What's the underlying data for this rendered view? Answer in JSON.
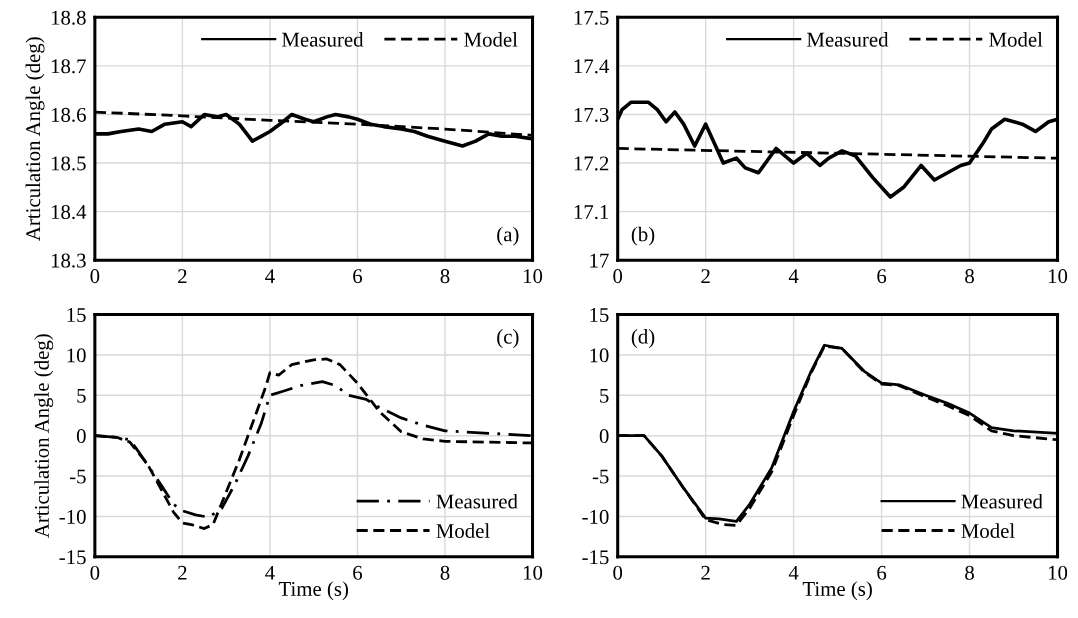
{
  "chart_data": [
    {
      "type": "line",
      "ylabel": "Articulation Angle (deg)",
      "annotations": [
        "(a)"
      ],
      "xlim": [
        0,
        10
      ],
      "xticks": [
        0,
        2,
        4,
        6,
        8,
        10
      ],
      "ylim": [
        18.3,
        18.8
      ],
      "yticks": [
        18.3,
        18.4,
        18.5,
        18.6,
        18.7,
        18.8
      ],
      "grid": true,
      "legend": "top right",
      "series": [
        {
          "name": "Measured",
          "color": "#000000",
          "line_style": "solid",
          "x": [
            0,
            0.3,
            0.6,
            1,
            1.3,
            1.6,
            2,
            2.2,
            2.5,
            2.8,
            3.0,
            3.3,
            3.6,
            3.8,
            4.0,
            4.3,
            4.5,
            4.8,
            5.0,
            5.3,
            5.5,
            5.8,
            6.0,
            6.3,
            6.6,
            7.0,
            7.3,
            7.6,
            8.0,
            8.4,
            8.7,
            9.0,
            9.3,
            9.6,
            10
          ],
          "values": [
            18.56,
            18.56,
            18.565,
            18.57,
            18.565,
            18.58,
            18.585,
            18.575,
            18.6,
            18.595,
            18.6,
            18.58,
            18.545,
            18.555,
            18.565,
            18.585,
            18.6,
            18.59,
            18.585,
            18.595,
            18.6,
            18.595,
            18.59,
            18.58,
            18.575,
            18.57,
            18.565,
            18.555,
            18.545,
            18.535,
            18.545,
            18.56,
            18.555,
            18.555,
            18.55
          ]
        },
        {
          "name": "Model",
          "color": "#000000",
          "line_style": "dashed",
          "x": [
            0,
            2,
            4,
            6,
            8,
            10
          ],
          "values": [
            18.605,
            18.597,
            18.588,
            18.58,
            18.57,
            18.557
          ]
        }
      ]
    },
    {
      "type": "line",
      "annotations": [
        "(b)"
      ],
      "xlim": [
        0,
        10
      ],
      "xticks": [
        0,
        2,
        4,
        6,
        8,
        10
      ],
      "ylim": [
        17,
        17.5
      ],
      "yticks": [
        17,
        17.1,
        17.2,
        17.3,
        17.4,
        17.5
      ],
      "grid": true,
      "legend": "top right",
      "series": [
        {
          "name": "Measured",
          "color": "#000000",
          "line_style": "solid",
          "x": [
            0,
            0.1,
            0.3,
            0.7,
            0.9,
            1.1,
            1.3,
            1.5,
            1.75,
            2.0,
            2.2,
            2.4,
            2.7,
            2.9,
            3.2,
            3.6,
            4.0,
            4.3,
            4.6,
            4.8,
            5.1,
            5.4,
            5.8,
            6.2,
            6.5,
            6.9,
            7.2,
            7.5,
            7.8,
            8.0,
            8.3,
            8.5,
            8.8,
            9.2,
            9.5,
            9.8,
            10
          ],
          "values": [
            17.29,
            17.31,
            17.325,
            17.325,
            17.31,
            17.285,
            17.305,
            17.28,
            17.235,
            17.28,
            17.24,
            17.2,
            17.21,
            17.19,
            17.18,
            17.23,
            17.2,
            17.22,
            17.195,
            17.21,
            17.225,
            17.215,
            17.17,
            17.13,
            17.15,
            17.195,
            17.165,
            17.18,
            17.195,
            17.2,
            17.24,
            17.27,
            17.29,
            17.28,
            17.265,
            17.285,
            17.29
          ]
        },
        {
          "name": "Model",
          "color": "#000000",
          "line_style": "dashed",
          "x": [
            0,
            5,
            10
          ],
          "values": [
            17.23,
            17.22,
            17.21
          ]
        }
      ]
    },
    {
      "type": "line",
      "xlabel": "Time (s)",
      "ylabel": "Articulation Angle (deg)",
      "annotations": [
        "(c)"
      ],
      "xlim": [
        0,
        10
      ],
      "xticks": [
        0,
        2,
        4,
        6,
        8,
        10
      ],
      "ylim": [
        -15,
        15
      ],
      "yticks": [
        -15,
        -10,
        -5,
        0,
        5,
        10,
        15
      ],
      "grid": true,
      "legend": "bottom right",
      "series": [
        {
          "name": "Measured",
          "color": "#000000",
          "line_style": "dashdot",
          "x": [
            0,
            0.5,
            0.8,
            1.0,
            1.5,
            1.8,
            2.0,
            2.3,
            2.6,
            2.9,
            3.2,
            3.5,
            3.8,
            4.0,
            4.3,
            4.7,
            5.2,
            5.5,
            5.8,
            6.2,
            6.5,
            7.0,
            7.5,
            8.0,
            9.0,
            10
          ],
          "values": [
            0,
            -0.2,
            -0.5,
            -2,
            -6,
            -8.5,
            -9.3,
            -9.8,
            -10.1,
            -9,
            -6,
            -2.5,
            1.5,
            5,
            5.5,
            6.2,
            6.7,
            6.2,
            5,
            4.5,
            3.5,
            2.2,
            1.3,
            0.6,
            0.3,
            0
          ]
        },
        {
          "name": "Model",
          "color": "#000000",
          "line_style": "dashed",
          "x": [
            0,
            0.5,
            0.8,
            1.2,
            1.5,
            1.8,
            2.0,
            2.2,
            2.5,
            2.7,
            3.0,
            3.3,
            3.6,
            3.9,
            4.0,
            4.2,
            4.5,
            5.0,
            5.3,
            5.6,
            6.0,
            6.5,
            7.0,
            7.5,
            8.0,
            9.0,
            10
          ],
          "values": [
            0,
            -0.2,
            -0.8,
            -3.5,
            -6.5,
            -9.5,
            -10.8,
            -11,
            -11.5,
            -11,
            -7,
            -3,
            1.5,
            6,
            7.8,
            7.5,
            8.8,
            9.4,
            9.5,
            8.8,
            6.5,
            3,
            0.5,
            -0.4,
            -0.7,
            -0.8,
            -0.9
          ]
        }
      ]
    },
    {
      "type": "line",
      "xlabel": "Time (s)",
      "annotations": [
        "(d)"
      ],
      "xlim": [
        0,
        10
      ],
      "xticks": [
        0,
        2,
        4,
        6,
        8,
        10
      ],
      "ylim": [
        -15,
        15
      ],
      "yticks": [
        -15,
        -10,
        -5,
        0,
        5,
        10,
        15
      ],
      "grid": true,
      "legend": "bottom right",
      "series": [
        {
          "name": "Measured",
          "color": "#000000",
          "line_style": "solid",
          "x": [
            0,
            0.6,
            1.0,
            1.5,
            2.0,
            2.3,
            2.7,
            3.0,
            3.5,
            4.0,
            4.4,
            4.7,
            5.1,
            5.6,
            6.0,
            6.4,
            7.0,
            7.5,
            8.0,
            8.5,
            9.0,
            10
          ],
          "values": [
            0,
            0,
            -2.5,
            -6.5,
            -10.2,
            -10.3,
            -10.6,
            -8.5,
            -4,
            3,
            8,
            11.2,
            10.8,
            8,
            6.5,
            6.3,
            5,
            4,
            2.8,
            1,
            0.6,
            0.3
          ]
        },
        {
          "name": "Model",
          "color": "#000000",
          "line_style": "dashed",
          "x": [
            0,
            0.6,
            1.0,
            1.5,
            2.0,
            2.4,
            2.7,
            3.0,
            3.5,
            4.0,
            4.4,
            4.7,
            5.1,
            5.6,
            6.0,
            6.4,
            7.0,
            7.5,
            8.0,
            8.5,
            9.0,
            10
          ],
          "values": [
            0,
            0,
            -2.5,
            -6.5,
            -10.4,
            -11,
            -11.1,
            -9,
            -4.5,
            2.5,
            7.8,
            11.1,
            10.8,
            7.9,
            6.4,
            6.2,
            4.8,
            3.7,
            2.5,
            0.6,
            0,
            -0.5
          ]
        }
      ]
    }
  ]
}
